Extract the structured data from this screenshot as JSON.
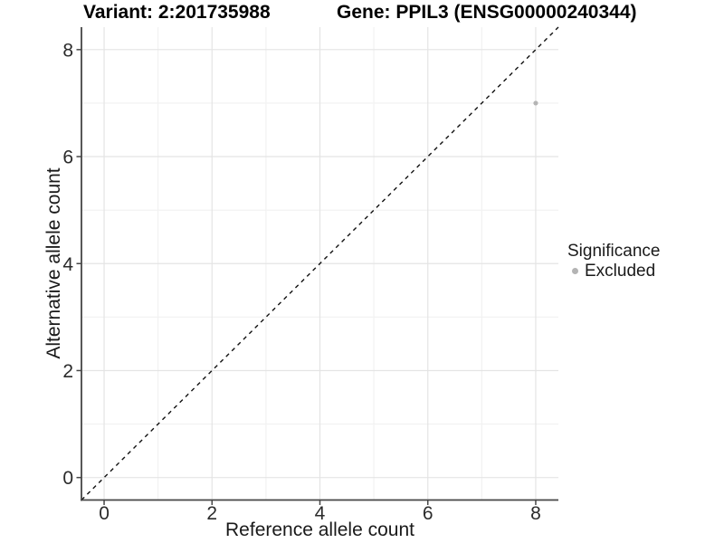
{
  "header": {
    "variant_title": "Variant: 2:201735988",
    "gene_title": "Gene: PPIL3 (ENSG00000240344)"
  },
  "chart_data": {
    "type": "scatter",
    "xlabel": "Reference allele count",
    "ylabel": "Alternative allele count",
    "xlim": [
      -0.42,
      8.42
    ],
    "ylim": [
      -0.42,
      8.42
    ],
    "xticks": [
      0,
      2,
      4,
      6,
      8
    ],
    "yticks": [
      0,
      2,
      4,
      6,
      8
    ],
    "xticks_minor": [
      1,
      3,
      5,
      7
    ],
    "yticks_minor": [
      1,
      3,
      5,
      7
    ],
    "grid": "on",
    "reference_line": {
      "type": "identity",
      "style": "dashed",
      "x1": -0.42,
      "y1": -0.42,
      "x2": 8.42,
      "y2": 8.42
    },
    "series": [
      {
        "name": "Excluded",
        "color": "#b4b4b4",
        "points": [
          {
            "x": 8,
            "y": 7
          }
        ]
      }
    ],
    "legend": {
      "title": "Significance",
      "position": "right",
      "items": [
        {
          "label": "Excluded",
          "color": "#b4b4b4",
          "marker": "point-icon"
        }
      ]
    }
  },
  "colors": {
    "background": "#ffffff",
    "axis_line": "#464646",
    "tick_label": "#2b2b2b",
    "grid_major": "#e4e4e4",
    "grid_minor": "#f1f1f1",
    "reference_line": "#111111",
    "excluded_point": "#b4b4b4",
    "title_text": "#000000"
  }
}
